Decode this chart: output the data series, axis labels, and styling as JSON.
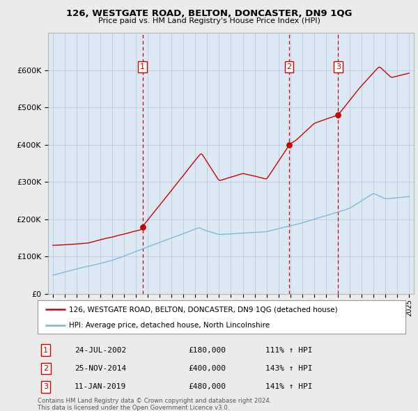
{
  "title": "126, WESTGATE ROAD, BELTON, DONCASTER, DN9 1QG",
  "subtitle": "Price paid vs. HM Land Registry's House Price Index (HPI)",
  "legend_property": "126, WESTGATE ROAD, BELTON, DONCASTER, DN9 1QG (detached house)",
  "legend_hpi": "HPI: Average price, detached house, North Lincolnshire",
  "footnote1": "Contains HM Land Registry data © Crown copyright and database right 2024.",
  "footnote2": "This data is licensed under the Open Government Licence v3.0.",
  "transactions": [
    {
      "num": 1,
      "date": "24-JUL-2002",
      "price": 180000,
      "pct": "111%",
      "dir": "↑",
      "x": 2002.55
    },
    {
      "num": 2,
      "date": "25-NOV-2014",
      "price": 400000,
      "pct": "143%",
      "dir": "↑",
      "x": 2014.9
    },
    {
      "num": 3,
      "date": "11-JAN-2019",
      "price": 480000,
      "pct": "141%",
      "dir": "↑",
      "x": 2019.03
    }
  ],
  "hpi_color": "#7ab8d9",
  "property_color": "#cc0000",
  "vline_color": "#cc0000",
  "background_color": "#ebebeb",
  "plot_bg_color": "#dce9f5",
  "grid_color": "#b0c4d8",
  "ylim": [
    0,
    700000
  ],
  "xlim_start": 1994.6,
  "xlim_end": 2025.4,
  "yticks": [
    0,
    100000,
    200000,
    300000,
    400000,
    500000,
    600000
  ],
  "ytick_labels": [
    "£0",
    "£100K",
    "£200K",
    "£300K",
    "£400K",
    "£500K",
    "£600K"
  ],
  "xticks": [
    1995,
    1996,
    1997,
    1998,
    1999,
    2000,
    2001,
    2002,
    2003,
    2004,
    2005,
    2006,
    2007,
    2008,
    2009,
    2010,
    2011,
    2012,
    2013,
    2014,
    2015,
    2016,
    2017,
    2018,
    2019,
    2020,
    2021,
    2022,
    2023,
    2024,
    2025
  ]
}
